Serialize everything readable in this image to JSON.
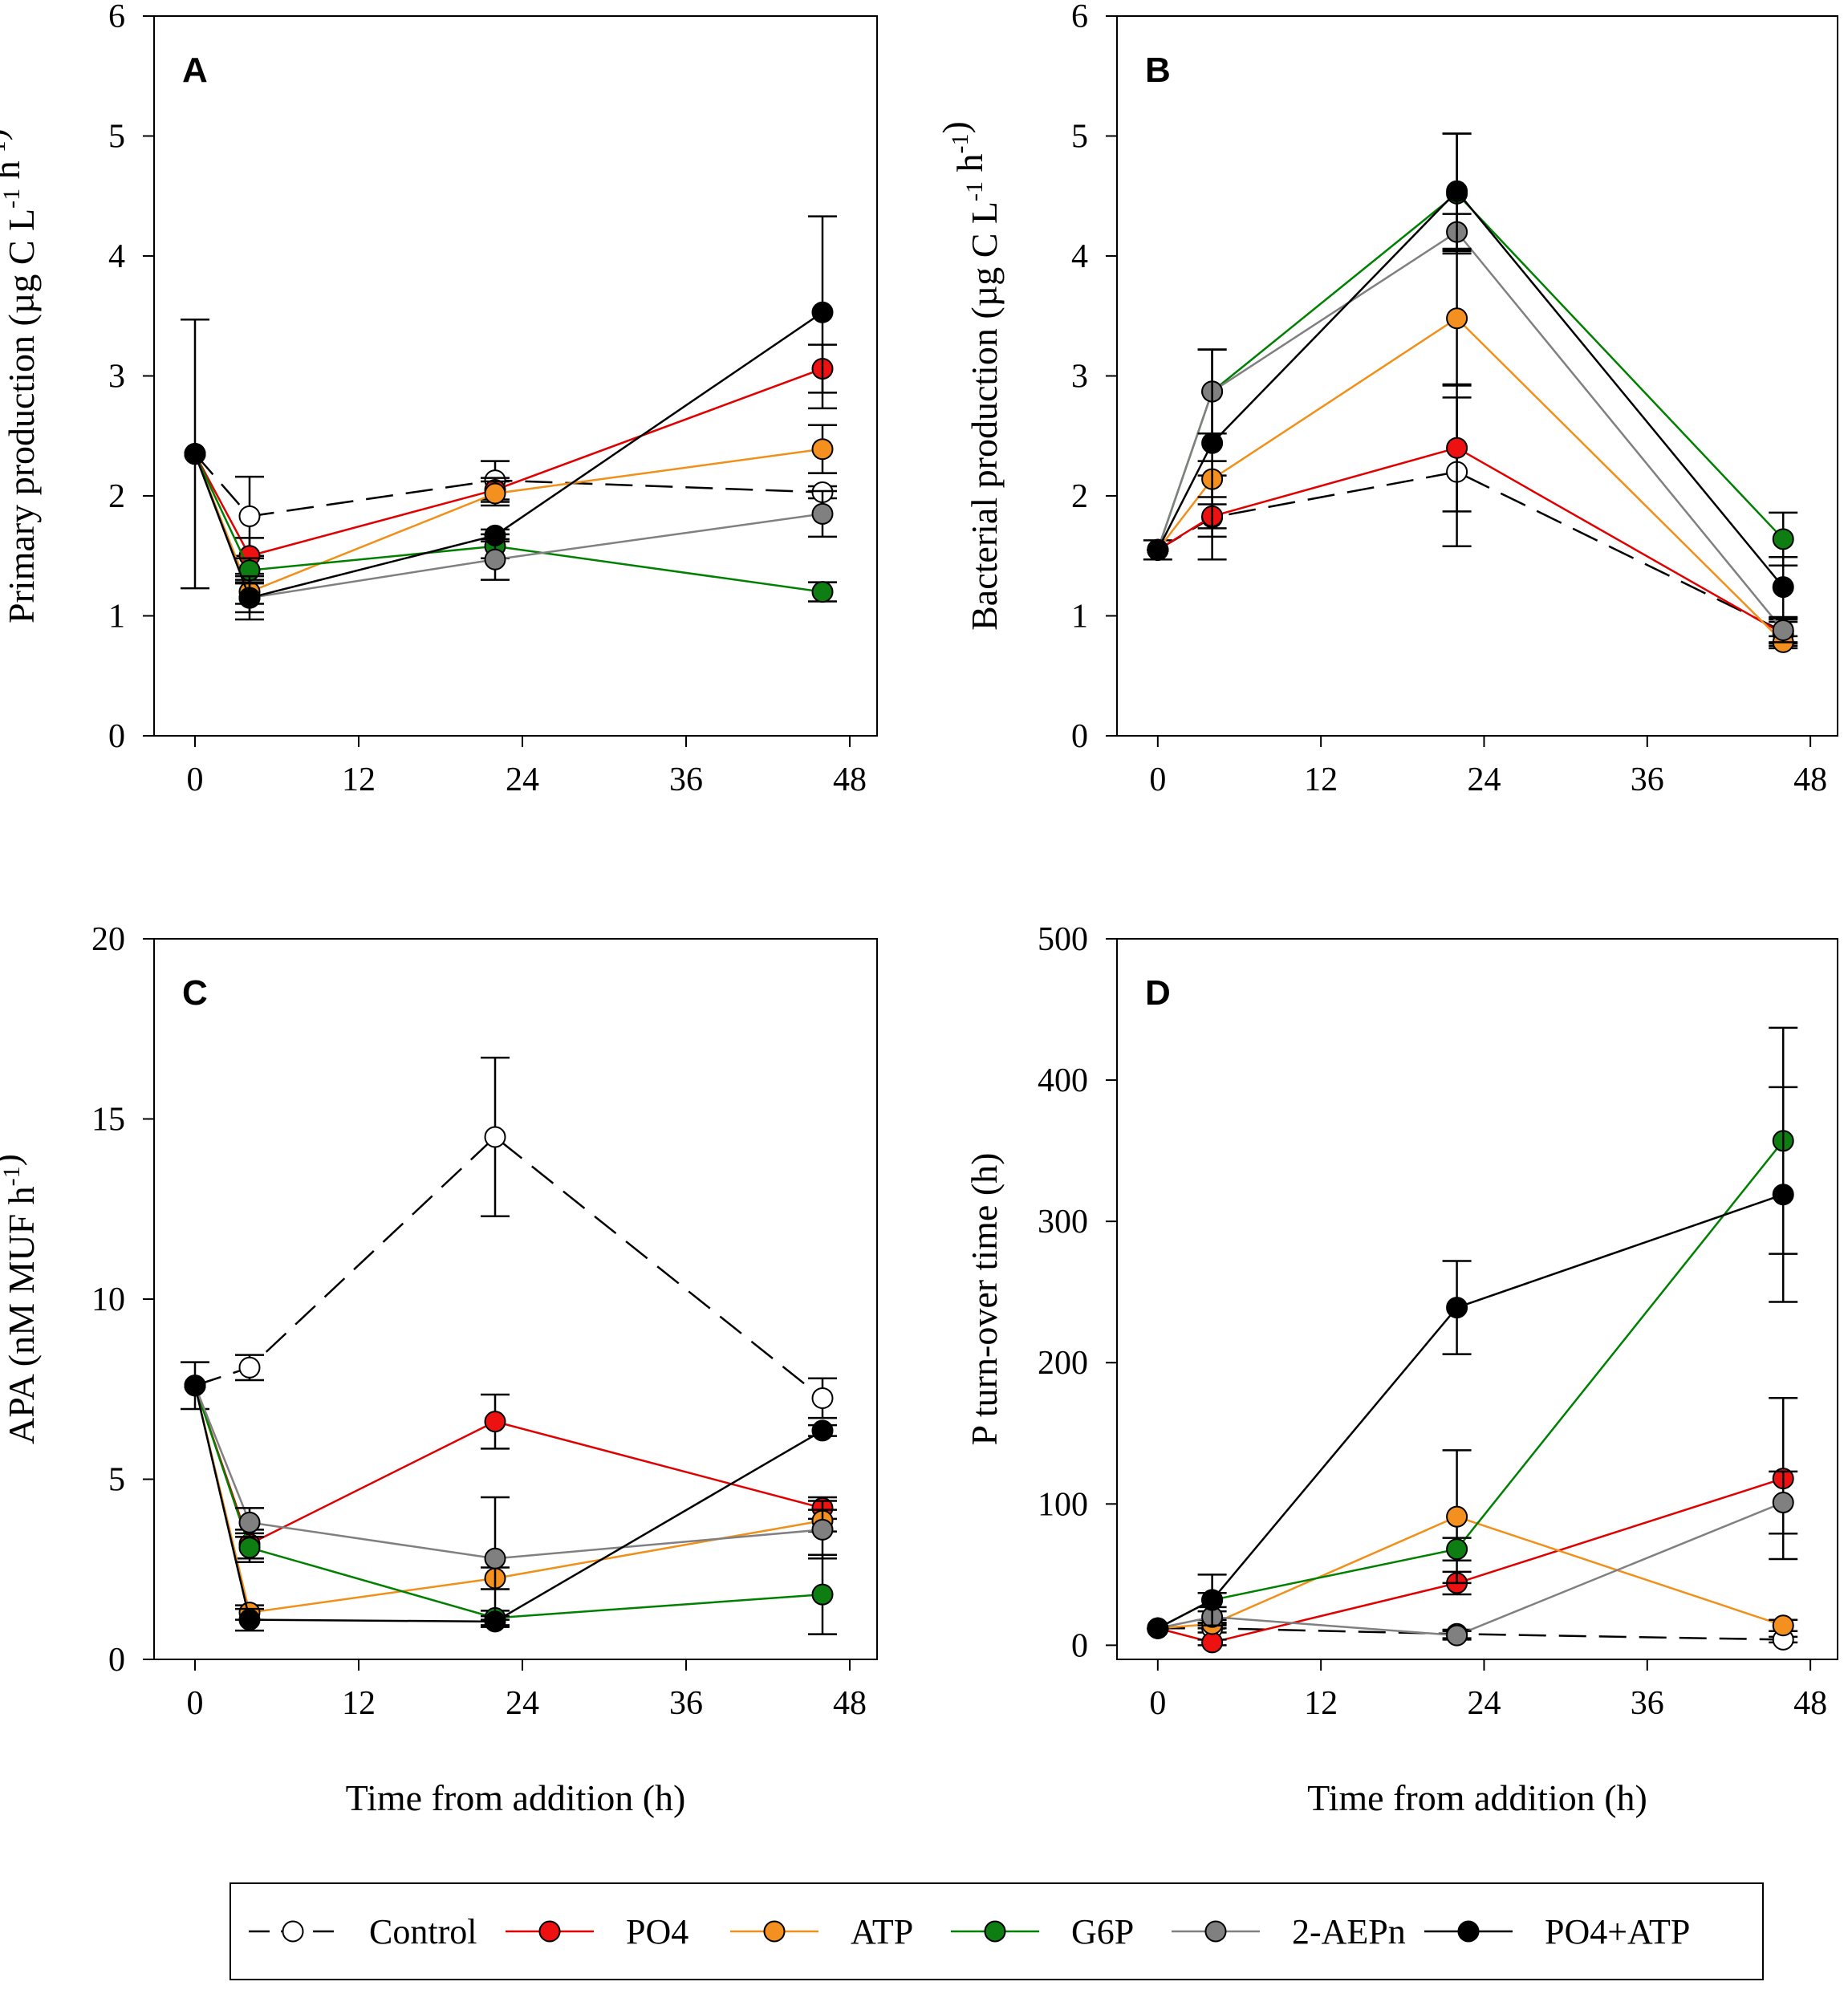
{
  "chart_data": [
    {
      "type": "line",
      "panel": "A",
      "ylabel": "Primary production (µg C L⁻¹ h⁻¹)",
      "xlabel": "",
      "xlim": [
        -3,
        50
      ],
      "ylim": [
        0,
        6
      ],
      "xticks": [
        0,
        12,
        24,
        36,
        48
      ],
      "yticks": [
        0,
        1,
        2,
        3,
        4,
        5,
        6
      ],
      "x": [
        0,
        4,
        22,
        46
      ],
      "series": [
        {
          "name": "Control",
          "values": [
            2.35,
            1.83,
            2.13,
            2.03
          ],
          "errors": [
            1.12,
            0.33,
            0.16,
            0.05
          ]
        },
        {
          "name": "PO4",
          "values": [
            2.35,
            1.5,
            2.05,
            3.06
          ],
          "errors": [
            0,
            0.15,
            0.1,
            0.2
          ]
        },
        {
          "name": "ATP",
          "values": [
            2.35,
            1.2,
            2.02,
            2.39
          ],
          "errors": [
            0,
            0.1,
            0.1,
            0.2
          ]
        },
        {
          "name": "G6P",
          "values": [
            2.35,
            1.38,
            1.58,
            1.2
          ],
          "errors": [
            0,
            0.1,
            0.1,
            0.08
          ]
        },
        {
          "name": "2-AEPn",
          "values": [
            2.35,
            1.15,
            1.47,
            1.85
          ],
          "errors": [
            0,
            0.12,
            0.17,
            0.19
          ]
        },
        {
          "name": "PO4+ATP",
          "values": [
            2.35,
            1.15,
            1.67,
            3.53
          ],
          "errors": [
            0,
            0.18,
            0.05,
            0.8
          ]
        }
      ]
    },
    {
      "type": "line",
      "panel": "B",
      "ylabel": "Bacterial production (µg C L⁻¹ h⁻¹)",
      "xlabel": "",
      "xlim": [
        -3,
        50
      ],
      "ylim": [
        0,
        6
      ],
      "xticks": [
        0,
        12,
        24,
        36,
        48
      ],
      "yticks": [
        0,
        1,
        2,
        3,
        4,
        5,
        6
      ],
      "x": [
        0,
        4,
        22,
        46
      ],
      "series": [
        {
          "name": "Control",
          "values": [
            1.55,
            1.82,
            2.2,
            0.87
          ],
          "errors": [
            0.08,
            0.35,
            0.62,
            0.1
          ]
        },
        {
          "name": "PO4",
          "values": [
            1.55,
            1.83,
            2.4,
            0.85
          ],
          "errors": [
            0,
            0.1,
            0.53,
            0.1
          ]
        },
        {
          "name": "ATP",
          "values": [
            1.55,
            2.14,
            3.48,
            0.78
          ],
          "errors": [
            0,
            0.15,
            0.56,
            0.05
          ]
        },
        {
          "name": "G6P",
          "values": [
            1.55,
            2.87,
            4.52,
            1.64
          ],
          "errors": [
            0,
            0.35,
            0.5,
            0.22
          ]
        },
        {
          "name": "2-AEPn",
          "values": [
            1.55,
            2.87,
            4.2,
            0.88
          ],
          "errors": [
            0,
            0.35,
            0.15,
            0.1
          ]
        },
        {
          "name": "PO4+ATP",
          "values": [
            1.55,
            2.44,
            4.54,
            1.24
          ],
          "errors": [
            0,
            0.78,
            0.48,
            0.25
          ]
        }
      ]
    },
    {
      "type": "line",
      "panel": "C",
      "ylabel": "APA (nM MUF h⁻¹)",
      "xlabel": "Time from addition (h)",
      "xlim": [
        -3,
        50
      ],
      "ylim": [
        0,
        20
      ],
      "xticks": [
        0,
        12,
        24,
        36,
        48
      ],
      "yticks": [
        0,
        5,
        10,
        15,
        20
      ],
      "x": [
        0,
        4,
        22,
        46
      ],
      "series": [
        {
          "name": "Control",
          "values": [
            7.6,
            8.1,
            14.5,
            7.25
          ],
          "errors": [
            0.65,
            0.35,
            2.2,
            0.55
          ]
        },
        {
          "name": "PO4",
          "values": [
            7.6,
            3.2,
            6.6,
            4.2
          ],
          "errors": [
            0,
            0.4,
            0.75,
            0.3
          ]
        },
        {
          "name": "ATP",
          "values": [
            7.6,
            1.3,
            2.25,
            3.85
          ],
          "errors": [
            0,
            0.2,
            0.3,
            0.3
          ]
        },
        {
          "name": "G6P",
          "values": [
            7.6,
            3.1,
            1.15,
            1.8
          ],
          "errors": [
            0,
            0.4,
            0.2,
            1.1
          ]
        },
        {
          "name": "2-AEPn",
          "values": [
            7.6,
            3.8,
            2.8,
            3.6
          ],
          "errors": [
            0,
            0.4,
            1.7,
            0.8
          ]
        },
        {
          "name": "PO4+ATP",
          "values": [
            7.6,
            1.1,
            1.05,
            6.35
          ],
          "errors": [
            0,
            0.3,
            0.15,
            0.15
          ]
        }
      ]
    },
    {
      "type": "line",
      "panel": "D",
      "ylabel": "P turn-over time (h)",
      "xlabel": "Time from addition (h)",
      "xlim": [
        -3,
        50
      ],
      "ylim": [
        -10,
        500
      ],
      "xticks": [
        0,
        12,
        24,
        36,
        48
      ],
      "yticks": [
        0,
        100,
        200,
        300,
        400,
        500
      ],
      "x": [
        0,
        4,
        22,
        46
      ],
      "series": [
        {
          "name": "Control",
          "values": [
            12,
            12,
            8,
            4
          ],
          "errors": [
            0,
            3,
            3,
            2
          ]
        },
        {
          "name": "PO4",
          "values": [
            12,
            2,
            44,
            118
          ],
          "errors": [
            0,
            2,
            8,
            57
          ]
        },
        {
          "name": "ATP",
          "values": [
            12,
            15,
            91,
            14
          ],
          "errors": [
            0,
            3,
            47,
            4
          ]
        },
        {
          "name": "G6P",
          "values": [
            12,
            32,
            68,
            357
          ],
          "errors": [
            0,
            5,
            8,
            80
          ]
        },
        {
          "name": "2-AEPn",
          "values": [
            12,
            20,
            7,
            101
          ],
          "errors": [
            0,
            4,
            3,
            22
          ]
        },
        {
          "name": "PO4+ATP",
          "values": [
            12,
            32,
            239,
            319
          ],
          "errors": [
            0,
            18,
            33,
            76
          ]
        }
      ]
    }
  ],
  "styles": {
    "Control": {
      "line": "#000000",
      "fill": "#ffffff",
      "dash": true
    },
    "PO4": {
      "line": "#e00000",
      "fill": "#ee1111",
      "dash": false
    },
    "ATP": {
      "line": "#f0901a",
      "fill": "#f39020",
      "dash": false
    },
    "G6P": {
      "line": "#008000",
      "fill": "#0e7e12",
      "dash": false
    },
    "2-AEPn": {
      "line": "#808080",
      "fill": "#808080",
      "dash": false
    },
    "PO4+ATP": {
      "line": "#000000",
      "fill": "#000000",
      "dash": false
    }
  },
  "legend": {
    "items": [
      "Control",
      "PO4",
      "ATP",
      "G6P",
      "2-AEPn",
      "PO4+ATP"
    ]
  }
}
